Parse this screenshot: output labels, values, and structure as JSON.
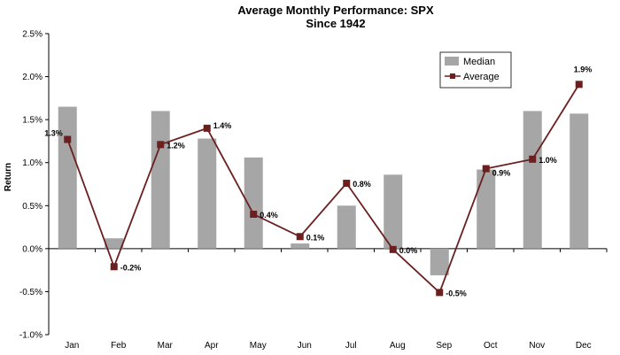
{
  "chart_data": {
    "type": "bar",
    "title": "Average Monthly Performance: SPX",
    "subtitle": "Since 1942",
    "xlabel": "",
    "ylabel": "Return",
    "categories": [
      "Jan",
      "Feb",
      "Mar",
      "Apr",
      "May",
      "Jun",
      "Jul",
      "Aug",
      "Sep",
      "Oct",
      "Nov",
      "Dec"
    ],
    "ylim": [
      -1.0,
      2.5
    ],
    "yticks": [
      "-1.0%",
      "-0.5%",
      "0.0%",
      "0.5%",
      "1.0%",
      "1.5%",
      "2.0%",
      "2.5%"
    ],
    "ytick_values": [
      -1.0,
      -0.5,
      0.0,
      0.5,
      1.0,
      1.5,
      2.0,
      2.5
    ],
    "grid": false,
    "legend_position": "top-right",
    "series": [
      {
        "name": "Median",
        "kind": "bar",
        "color": "#a6a6a6",
        "values": [
          1.65,
          0.12,
          1.6,
          1.28,
          1.06,
          0.06,
          0.5,
          0.86,
          -0.31,
          0.92,
          1.6,
          1.57
        ]
      },
      {
        "name": "Average",
        "kind": "line",
        "color": "#6b1f1f",
        "values": [
          1.27,
          -0.21,
          1.21,
          1.4,
          0.4,
          0.14,
          0.76,
          -0.01,
          -0.51,
          0.93,
          1.04,
          1.91
        ],
        "labels": [
          "1.3%",
          "-0.2%",
          "1.2%",
          "1.4%",
          "0.4%",
          "0.1%",
          "0.8%",
          "0.0%",
          "-0.5%",
          "0.9%",
          "1.0%",
          "1.9%"
        ]
      }
    ]
  }
}
